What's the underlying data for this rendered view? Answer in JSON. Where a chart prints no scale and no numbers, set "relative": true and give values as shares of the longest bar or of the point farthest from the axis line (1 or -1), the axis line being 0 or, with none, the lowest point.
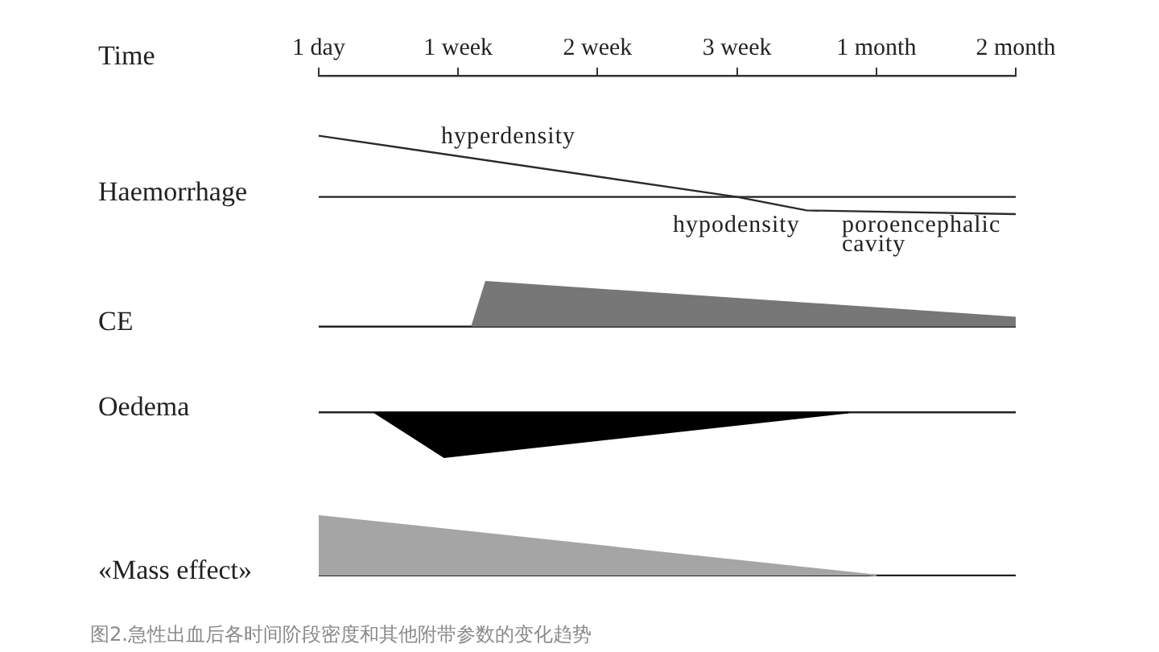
{
  "chart_data": [
    {
      "type": "line",
      "xlabel": "Time",
      "ylabel": "Haemorrhage",
      "relative": true,
      "tick_labels": "x",
      "categories": [
        "1 day",
        null,
        null,
        null,
        null,
        null,
        null,
        null,
        null,
        null,
        "1 week",
        null,
        null,
        null,
        null,
        null,
        null,
        null,
        null,
        null,
        "2 week",
        null,
        null,
        null,
        null,
        null,
        null,
        null,
        null,
        null,
        "3 week",
        null,
        null,
        null,
        null,
        null,
        null,
        null,
        null,
        null,
        "1 month",
        null,
        null,
        null,
        null,
        null,
        null,
        null,
        null,
        null,
        "2 month"
      ],
      "values": [
        1,
        null,
        null,
        null,
        null,
        null,
        null,
        null,
        null,
        null,
        null,
        null,
        null,
        null,
        null,
        null,
        null,
        null,
        null,
        null,
        null,
        null,
        null,
        null,
        null,
        null,
        null,
        null,
        null,
        null,
        0,
        null,
        null,
        null,
        null,
        -0.22,
        null,
        null,
        null,
        null,
        null,
        null,
        null,
        null,
        null,
        null,
        null,
        null,
        null,
        null,
        -0.28
      ],
      "color": "#2b2b2b",
      "annotations": [
        "hyperdensity",
        "hypodensity",
        "poroencephalic\ncavity"
      ]
    },
    {
      "type": "area",
      "ylabel": "CE",
      "relative": true,
      "tick_labels": false,
      "categories": [
        null,
        null,
        null,
        null,
        null,
        null,
        null,
        null,
        null,
        null,
        null,
        null,
        null,
        null,
        null,
        null,
        null,
        null,
        null,
        null,
        null,
        null,
        null,
        null,
        null,
        null,
        null,
        null,
        null,
        null,
        null,
        null,
        null,
        null,
        null,
        null,
        null,
        null,
        null,
        null,
        null,
        null,
        null,
        null,
        null,
        null,
        null,
        null,
        null,
        null,
        null
      ],
      "values": [
        null,
        null,
        null,
        null,
        null,
        null,
        null,
        null,
        null,
        null,
        null,
        0,
        1,
        null,
        null,
        null,
        null,
        null,
        null,
        null,
        null,
        null,
        null,
        null,
        null,
        null,
        null,
        null,
        null,
        null,
        null,
        null,
        null,
        null,
        null,
        null,
        null,
        null,
        null,
        null,
        null,
        null,
        null,
        null,
        null,
        null,
        null,
        null,
        null,
        null,
        0.2
      ],
      "color": "#777777"
    },
    {
      "type": "area",
      "ylabel": "Oedema",
      "relative": true,
      "tick_labels": false,
      "categories": [
        null,
        null,
        null,
        null,
        null,
        null,
        null,
        null,
        null,
        null,
        null,
        null,
        null,
        null,
        null,
        null,
        null,
        null,
        null,
        null,
        null,
        null,
        null,
        null,
        null,
        null,
        null,
        null,
        null,
        null,
        null,
        null,
        null,
        null,
        null,
        null,
        null,
        null,
        null,
        null,
        null,
        null,
        null,
        null,
        null,
        null,
        null,
        null,
        null,
        null,
        null
      ],
      "values": [
        null,
        null,
        null,
        null,
        0,
        null,
        null,
        null,
        null,
        -1,
        null,
        null,
        null,
        null,
        null,
        null,
        null,
        null,
        null,
        null,
        null,
        null,
        null,
        null,
        null,
        null,
        null,
        null,
        null,
        null,
        null,
        null,
        null,
        null,
        null,
        null,
        null,
        null,
        0,
        null,
        null,
        null,
        null,
        null,
        null,
        null,
        null,
        null,
        null,
        null,
        null
      ],
      "color": "#000000"
    },
    {
      "type": "area",
      "ylabel": "«Mass effect»",
      "relative": true,
      "tick_labels": false,
      "categories": [
        null,
        null,
        null,
        null,
        null,
        null,
        null,
        null,
        null,
        null,
        null,
        null,
        null,
        null,
        null,
        null,
        null,
        null,
        null,
        null,
        null,
        null,
        null,
        null,
        null,
        null,
        null,
        null,
        null,
        null,
        null,
        null,
        null,
        null,
        null,
        null,
        null,
        null,
        null,
        null,
        null,
        null,
        null,
        null,
        null,
        null,
        null,
        null,
        null,
        null,
        null
      ],
      "values": [
        1,
        null,
        null,
        null,
        null,
        null,
        null,
        null,
        null,
        null,
        null,
        null,
        null,
        null,
        null,
        null,
        null,
        null,
        null,
        null,
        null,
        null,
        null,
        null,
        null,
        null,
        null,
        null,
        null,
        null,
        null,
        null,
        null,
        null,
        null,
        null,
        null,
        null,
        null,
        null,
        0,
        null,
        null,
        null,
        null,
        null,
        null,
        null,
        null,
        null,
        null
      ],
      "color": "#a5a5a5",
      "annotations": [
        "图2.急性出血后各时间阶段密度和其他附带参数的变化趋势"
      ]
    }
  ]
}
